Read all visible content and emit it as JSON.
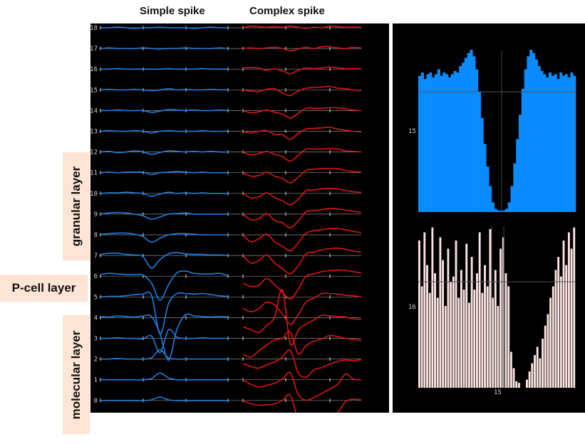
{
  "titles": {
    "simple": "Simple spike",
    "complex": "Complex spike"
  },
  "layers": {
    "granular": "granular layer",
    "pcell": "P-cell layer",
    "molecular": "molecular layer"
  },
  "colors": {
    "simple": "#1e7fe0",
    "complex": "#dd1515",
    "upper_fill": "#0a8cff",
    "lower_fill": "#fce4e4"
  },
  "chart_data": [
    {
      "type": "line",
      "title": "Simple spike",
      "channels": [
        "18",
        "17",
        "16",
        "15",
        "14",
        "13",
        "12",
        "11",
        "10",
        "9",
        "8",
        "7",
        "6",
        "5",
        "4",
        "3",
        "2",
        "1",
        "0"
      ],
      "series": [
        {
          "name": "18",
          "values": [
            0,
            0,
            0.1,
            0,
            -0.1,
            0,
            0,
            0.1,
            0,
            0,
            0,
            -0.1,
            0,
            0.1,
            0,
            0
          ]
        },
        {
          "name": "17",
          "values": [
            0,
            0.1,
            0,
            0,
            0,
            0.1,
            0,
            -0.1,
            0,
            0,
            0.1,
            0,
            0,
            0,
            0.1,
            0
          ]
        },
        {
          "name": "16",
          "values": [
            0,
            0,
            0.1,
            0,
            0,
            0,
            0,
            0,
            0.1,
            0,
            0,
            0,
            0.1,
            0,
            0,
            0
          ]
        },
        {
          "name": "15",
          "values": [
            0,
            0.1,
            0,
            0,
            0.1,
            0,
            -0.1,
            0,
            0.2,
            0,
            0.1,
            0,
            0,
            0.1,
            0,
            0
          ]
        },
        {
          "name": "14",
          "values": [
            0,
            0,
            0.1,
            0,
            0,
            0,
            -0.3,
            -0.1,
            0.2,
            0.1,
            0,
            0.1,
            0,
            0,
            0.1,
            0
          ]
        },
        {
          "name": "13",
          "values": [
            0,
            0.1,
            0,
            0,
            0.1,
            0,
            -0.3,
            0,
            0.1,
            0,
            0,
            0,
            0.1,
            0,
            0,
            0
          ]
        },
        {
          "name": "12",
          "values": [
            0,
            0.1,
            -0.1,
            0,
            0.2,
            0,
            -0.4,
            -0.1,
            0.2,
            0.1,
            0,
            0.1,
            0,
            0.1,
            0,
            0
          ]
        },
        {
          "name": "11",
          "values": [
            0,
            0.1,
            0,
            0.1,
            0.1,
            0.1,
            -0.3,
            0,
            0.1,
            0.2,
            0.1,
            0,
            0.1,
            0,
            0,
            0
          ]
        },
        {
          "name": "10",
          "values": [
            0,
            0.1,
            0.1,
            0.2,
            0.1,
            0,
            -0.5,
            -0.1,
            0.2,
            0,
            0.1,
            0,
            0.1,
            0,
            0,
            0
          ]
        },
        {
          "name": "9",
          "values": [
            0,
            0.2,
            0.3,
            0.2,
            0,
            -0.3,
            -0.9,
            -0.5,
            0,
            0.1,
            0.2,
            0,
            0,
            0,
            0,
            0
          ]
        },
        {
          "name": "8",
          "values": [
            0.1,
            0.2,
            0.3,
            0.3,
            0.1,
            -0.3,
            -1.3,
            -0.6,
            0,
            0.2,
            0.2,
            0.1,
            0,
            0,
            0,
            0
          ]
        },
        {
          "name": "7",
          "values": [
            0.2,
            0.4,
            0.4,
            0.2,
            0.1,
            -0.2,
            -2.2,
            -0.7,
            0.3,
            0.5,
            0.3,
            0.2,
            0.2,
            0.1,
            0.1,
            0
          ]
        },
        {
          "name": "6",
          "values": [
            0.3,
            0.5,
            0.4,
            0.3,
            0.3,
            0.2,
            -1.2,
            -4.2,
            -1.5,
            0.6,
            0.9,
            0.5,
            0.4,
            0.4,
            0.5,
            0.1
          ]
        },
        {
          "name": "5",
          "values": [
            0,
            0.1,
            0.1,
            0.2,
            0.4,
            0.5,
            0.3,
            -6.5,
            -1.2,
            0.6,
            0.6,
            0.5,
            0.6,
            0.4,
            0.2,
            0.1
          ]
        },
        {
          "name": "4",
          "values": [
            0.2,
            0.1,
            0.3,
            0.2,
            0.1,
            0.3,
            0.2,
            -2.8,
            -7.5,
            -2.0,
            0.5,
            0.3,
            0.2,
            0.1,
            0.2,
            0.1
          ]
        },
        {
          "name": "3",
          "values": [
            0,
            0,
            0.1,
            0,
            0,
            -0.1,
            0.4,
            -2.5,
            1.5,
            0.2,
            0,
            0,
            0.1,
            0,
            0,
            0
          ]
        },
        {
          "name": "2",
          "values": [
            0,
            0,
            0.1,
            0,
            0,
            0,
            0.2,
            1.6,
            0.2,
            0,
            0,
            0,
            0,
            0,
            0,
            0
          ]
        },
        {
          "name": "1",
          "values": [
            0,
            0,
            0,
            0,
            0,
            0,
            0.2,
            1.2,
            0.3,
            0,
            0,
            0,
            0,
            0,
            0,
            0
          ]
        },
        {
          "name": "0",
          "values": [
            0,
            0,
            0,
            0,
            0,
            0,
            0.1,
            0.6,
            0.1,
            0,
            0,
            0,
            0,
            0,
            0,
            0
          ]
        }
      ]
    },
    {
      "type": "line",
      "title": "Complex spike",
      "channels": [
        "18",
        "17",
        "16",
        "15",
        "14",
        "13",
        "12",
        "11",
        "10",
        "9",
        "8",
        "7",
        "6",
        "5",
        "4",
        "3",
        "2",
        "1",
        "0"
      ],
      "series": [
        {
          "name": "18",
          "values": [
            0,
            0.3,
            0.2,
            0.1,
            0.2,
            0.1,
            0.3,
            0.1,
            -0.1,
            0.1,
            0,
            0.3,
            0.2,
            0.1,
            0.1,
            0.1
          ]
        },
        {
          "name": "17",
          "values": [
            0,
            0.1,
            0,
            0.1,
            0.2,
            0,
            -0.4,
            -0.1,
            0.2,
            0,
            0.3,
            0.3,
            0.1,
            0,
            0.2,
            0.1
          ]
        },
        {
          "name": "16",
          "values": [
            0.2,
            0.3,
            0.2,
            -0.2,
            0.1,
            -0.3,
            -0.8,
            -0.2,
            0.2,
            0.1,
            0.2,
            0.4,
            0.2,
            0.1,
            0.1,
            0.1
          ]
        },
        {
          "name": "15",
          "values": [
            0,
            -0.2,
            -0.3,
            0.1,
            0.2,
            -0.5,
            -1.0,
            -0.2,
            0.3,
            0.4,
            0.5,
            0.6,
            0.3,
            0.2,
            0,
            -0.1
          ]
        },
        {
          "name": "14",
          "values": [
            0,
            -0.4,
            -0.2,
            0.1,
            -0.3,
            -0.6,
            -1.3,
            -0.5,
            0.4,
            0.4,
            0.4,
            0.5,
            0.5,
            0.3,
            0.1,
            0
          ]
        },
        {
          "name": "13",
          "values": [
            0,
            -0.3,
            0,
            0.1,
            -0.5,
            -0.6,
            -1.4,
            -0.4,
            0.4,
            0.5,
            0.6,
            0.7,
            0.4,
            0.2,
            0,
            -0.1
          ]
        },
        {
          "name": "12",
          "values": [
            0,
            -0.5,
            -0.3,
            0.1,
            -0.4,
            -0.8,
            -1.6,
            -0.6,
            0.5,
            0.5,
            0.5,
            0.6,
            0.5,
            0.2,
            0.1,
            0
          ]
        },
        {
          "name": "11",
          "values": [
            0,
            -0.6,
            -0.5,
            0.1,
            -0.6,
            -1.0,
            -1.8,
            -0.8,
            0.4,
            0.6,
            0.7,
            0.7,
            0.7,
            0.4,
            0.2,
            0.1
          ]
        },
        {
          "name": "10",
          "values": [
            0,
            -0.8,
            -0.6,
            0.1,
            -0.7,
            -1.3,
            -2.0,
            -1.0,
            0.5,
            0.6,
            0.8,
            0.9,
            0.8,
            0.5,
            0.3,
            0.2
          ]
        },
        {
          "name": "9",
          "values": [
            0,
            -1.0,
            -0.8,
            0.1,
            -1.1,
            -1.5,
            -2.4,
            -1.2,
            0.4,
            0.6,
            0.8,
            1.0,
            0.9,
            0.7,
            0.5,
            0.3
          ]
        },
        {
          "name": "8",
          "values": [
            0,
            -1.2,
            -0.7,
            0.1,
            -1.2,
            -2.0,
            -2.8,
            -1.4,
            0.3,
            0.7,
            0.9,
            1.1,
            1.1,
            0.9,
            0.6,
            0.4
          ]
        },
        {
          "name": "7",
          "values": [
            0,
            -1.3,
            -0.9,
            0.1,
            -1.3,
            -2.3,
            -3.2,
            -1.8,
            0.3,
            0.6,
            1.0,
            1.2,
            1.3,
            1.1,
            0.8,
            0.6
          ]
        },
        {
          "name": "6",
          "values": [
            -1.2,
            -1.8,
            -1.6,
            -0.4,
            -1.5,
            -2.8,
            -4.0,
            -2.3,
            0,
            0.4,
            0.8,
            1.0,
            1.1,
            1.0,
            0.8,
            0.6
          ]
        },
        {
          "name": "5",
          "values": [
            -2.0,
            -2.6,
            -2.1,
            -0.9,
            -1.4,
            -3.0,
            -4.8,
            -3.1,
            -0.9,
            -0.2,
            0.6,
            0.6,
            0.5,
            0.3,
            0.2,
            0
          ]
        },
        {
          "name": "4",
          "values": [
            -1.6,
            -2.1,
            -2.6,
            -1.4,
            0.1,
            4.9,
            -4.6,
            -2.2,
            -1.1,
            -0.4,
            0.4,
            0.3,
            0.2,
            0.1,
            -0.2,
            -0.3
          ]
        },
        {
          "name": "3",
          "values": [
            -2.8,
            -3.3,
            -2.2,
            -1.2,
            -0.3,
            0,
            1.1,
            -2.7,
            -1.3,
            -0.5,
            -0.1,
            0.5,
            0.3,
            0,
            -0.2,
            -0.4
          ]
        },
        {
          "name": "2",
          "values": [
            -0.8,
            -1.3,
            -1.6,
            -1.0,
            -0.5,
            0.3,
            1.5,
            -2.4,
            -3.2,
            -1.9,
            -1.5,
            -0.9,
            -0.4,
            -0.2,
            -0.3,
            -0.1
          ]
        },
        {
          "name": "1",
          "values": [
            0,
            -0.8,
            -1.3,
            -1.0,
            -0.6,
            0.1,
            1.2,
            -2.6,
            -3.6,
            -3.1,
            -2.4,
            -1.6,
            -0.8,
            1.0,
            0.1,
            0
          ]
        },
        {
          "name": "0",
          "values": [
            0,
            -0.6,
            -0.8,
            -0.8,
            -0.6,
            0,
            0.9,
            -3.4,
            -4.3,
            -4.1,
            -3.8,
            -3.2,
            -2.2,
            -0.2,
            0.2,
            0.1
          ]
        }
      ]
    },
    {
      "type": "bar",
      "title": "",
      "ytick_label": "15",
      "ylim": [
        0,
        1
      ],
      "values": [
        0.84,
        0.86,
        0.82,
        0.85,
        0.86,
        0.83,
        0.85,
        0.88,
        0.84,
        0.86,
        0.85,
        0.83,
        0.85,
        0.87,
        0.86,
        0.9,
        0.92,
        0.95,
        0.98,
        1.0,
        0.96,
        0.88,
        0.74,
        0.58,
        0.42,
        0.28,
        0.16,
        0.06,
        0.02,
        0.01,
        0.01,
        0.01,
        0.02,
        0.06,
        0.16,
        0.3,
        0.45,
        0.6,
        0.76,
        0.88,
        0.96,
        1.0,
        0.98,
        0.94,
        0.9,
        0.87,
        0.85,
        0.83,
        0.86,
        0.84,
        0.85,
        0.82,
        0.86,
        0.84,
        0.85,
        0.83,
        0.86,
        0.84
      ]
    },
    {
      "type": "bar",
      "title": "",
      "ytick_label": "16",
      "xtick_label": "15",
      "ylim": [
        0,
        1
      ],
      "values": [
        0.9,
        0.62,
        0.95,
        0.75,
        0.58,
        0.98,
        0.7,
        0.55,
        0.92,
        0.78,
        0.5,
        0.85,
        0.65,
        0.68,
        0.9,
        0.55,
        0.72,
        0.6,
        0.88,
        0.52,
        0.8,
        0.6,
        0.7,
        0.95,
        0.58,
        0.75,
        0.62,
        0.97,
        0.55,
        0.72,
        0.5,
        0.85,
        0.92,
        0.7,
        0.62,
        0.22,
        0.12,
        0.04,
        0.03,
        0,
        0,
        0.05,
        0.1,
        0.15,
        0.2,
        0.25,
        0.18,
        0.3,
        0.38,
        0.45,
        0.55,
        0.62,
        0.72,
        0.8,
        0.68,
        0.9,
        0.75,
        0.95,
        0.85,
        0.98
      ]
    }
  ]
}
